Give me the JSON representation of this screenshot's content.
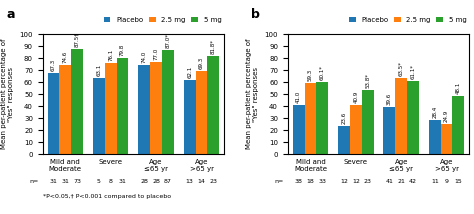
{
  "chart_data": [
    {
      "type": "bar",
      "title": "a",
      "categories": [
        "Mild and\nModerate",
        "Severe",
        "Age\n≤65 yr",
        "Age\n>65 yr"
      ],
      "y_label": "Mean per-patient percentage of\n\"Yes\" responses",
      "n_label": "n=",
      "series": [
        {
          "name": "Placebo",
          "values": [
            67.3,
            63.1,
            74.0,
            62.1
          ],
          "value_labels": [
            "67.3",
            "63.1",
            "74.0",
            "62.1"
          ],
          "n": [
            31,
            5,
            28,
            13
          ]
        },
        {
          "name": "2.5 mg",
          "values": [
            74.6,
            76.1,
            77.0,
            69.3
          ],
          "value_labels": [
            "74.6",
            "76.1",
            "77.0",
            "69.3"
          ],
          "n": [
            31,
            8,
            28,
            14
          ]
        },
        {
          "name": "5 mg",
          "values": [
            87.5,
            79.8,
            87.0,
            81.8
          ],
          "value_labels": [
            "87.5†",
            "79.8",
            "87.0*",
            "81.8*"
          ],
          "n": [
            73,
            31,
            87,
            23
          ]
        }
      ],
      "ylim": [
        0,
        100
      ],
      "yticks": [
        0,
        10,
        20,
        30,
        40,
        50,
        60,
        70,
        80,
        90,
        100
      ],
      "data_labels": true,
      "legend": "upper right",
      "annotations": [
        "*P<0.05,† P<0.001 compared to placebo"
      ]
    },
    {
      "type": "bar",
      "title": "b",
      "categories": [
        "Mild and\nModerate",
        "Severe",
        "Age\n≤65 yr",
        "Age\n>65 yr"
      ],
      "y_label": "Mean per-patient percentage of\n\"Yes\" responses",
      "n_label": "n=",
      "series": [
        {
          "name": "Placebo",
          "values": [
            41.0,
            23.6,
            39.6,
            28.4
          ],
          "value_labels": [
            "41.0",
            "23.6",
            "39.6",
            "28.4"
          ],
          "n": [
            38,
            12,
            41,
            11
          ]
        },
        {
          "name": "2.5 mg",
          "values": [
            59.3,
            40.9,
            63.5,
            24.9
          ],
          "value_labels": [
            "59.3",
            "40.9",
            "63.5*",
            "24.9"
          ],
          "n": [
            18,
            12,
            21,
            9
          ]
        },
        {
          "name": "5 mg",
          "values": [
            60.1,
            53.8,
            61.1,
            48.1
          ],
          "value_labels": [
            "60.1*",
            "53.8*",
            "61.1*",
            "48.1"
          ],
          "n": [
            33,
            23,
            42,
            15
          ]
        }
      ],
      "ylim": [
        0,
        100
      ],
      "yticks": [
        0,
        10,
        20,
        30,
        40,
        50,
        60,
        70,
        80,
        90,
        100
      ],
      "data_labels": true,
      "legend": "upper right"
    }
  ]
}
